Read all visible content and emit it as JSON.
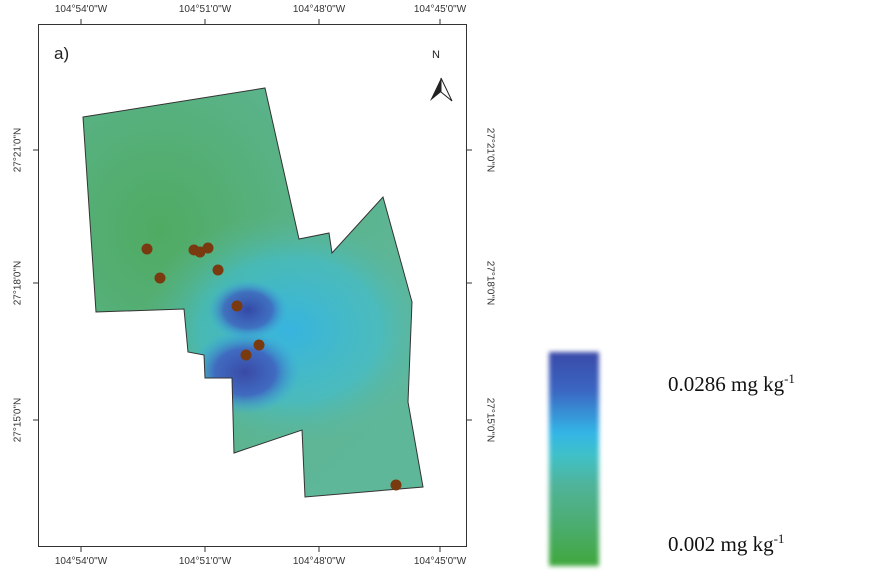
{
  "map": {
    "panel_label": "a)",
    "north_label": "N",
    "lon_labels_top": [
      "104°54'0\"W",
      "104°51'0\"W",
      "104°48'0\"W",
      "104°45'0\"W"
    ],
    "lon_labels_bottom": [
      "104°54'0\"W",
      "104°51'0\"W",
      "104°48'0\"W",
      "104°45'0\"W"
    ],
    "lat_labels_left": [
      "27°21'0\"N",
      "27°18'0\"N",
      "27°15'0\"N"
    ],
    "lat_labels_right": [
      "27°21'0\"N",
      "27°18'0\"N",
      "27°15'0\"N"
    ],
    "colors": {
      "sample_point": "#7a3a10",
      "high": "#3949a8",
      "mid": "#33b6e6",
      "low": "#3fa73c",
      "field": "#5fb592"
    }
  },
  "legend": {
    "max_value": "0.0286 mg kg",
    "max_sup": "-1",
    "min_value": "0.002 mg kg",
    "min_sup": "-1"
  }
}
